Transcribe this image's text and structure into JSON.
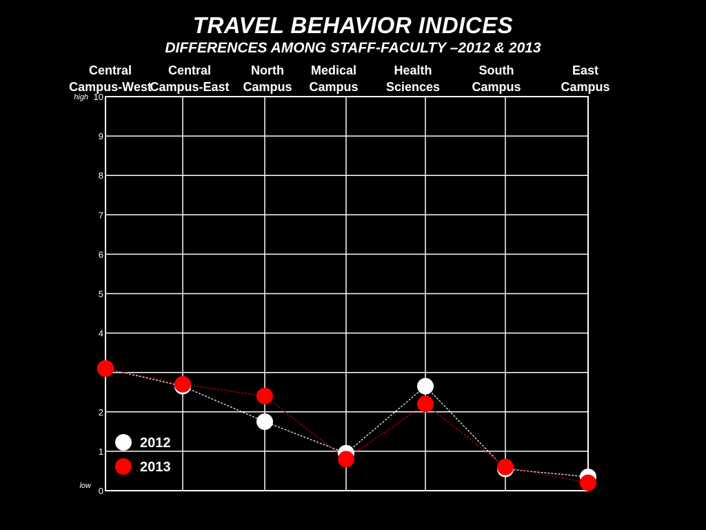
{
  "chart_data": {
    "type": "line",
    "title": "TRAVEL BEHAVIOR INDICES",
    "subtitle": "DIFFERENCES AMONG STAFF-FACULTY –2012 & 2013",
    "categories": [
      [
        "Central",
        "Campus-West"
      ],
      [
        "Central",
        "Campus-East"
      ],
      [
        "North",
        "Campus"
      ],
      [
        "Medical",
        "Campus"
      ],
      [
        "Health",
        "Sciences"
      ],
      [
        "South",
        "Campus"
      ],
      [
        "East",
        "Campus"
      ]
    ],
    "y_ticks": [
      "0",
      "1",
      "2",
      "4",
      "5",
      "6",
      "7",
      "8",
      "9",
      "10"
    ],
    "y_tick_values": [
      0,
      1,
      2,
      4,
      5,
      6,
      7,
      8,
      9,
      10
    ],
    "y_high_label": "high",
    "y_low_label": "low",
    "ylim": [
      0,
      10
    ],
    "grid": true,
    "legend_position": "bottom-left",
    "series": [
      {
        "name": "2012",
        "color": "#ffffff",
        "values": [
          3.1,
          2.65,
          1.75,
          0.95,
          2.65,
          0.55,
          0.35
        ]
      },
      {
        "name": "2013",
        "color": "#ff0000",
        "values": [
          3.1,
          2.7,
          2.4,
          0.8,
          2.2,
          0.6,
          0.2
        ]
      }
    ]
  }
}
